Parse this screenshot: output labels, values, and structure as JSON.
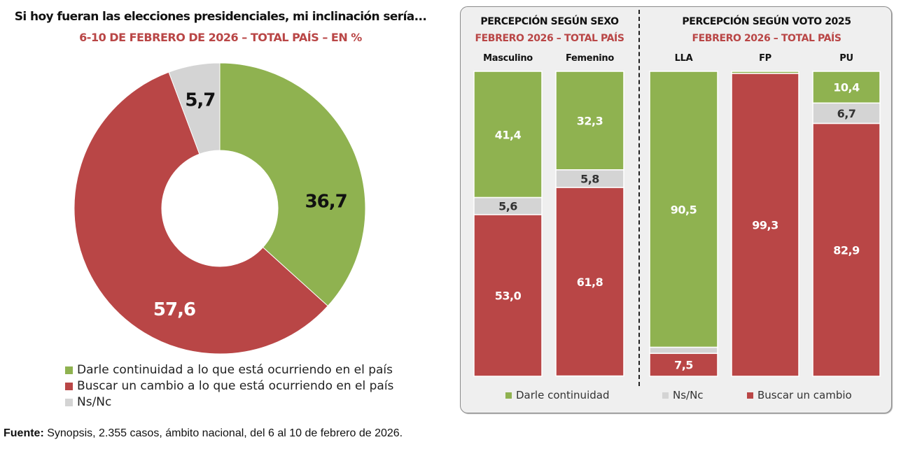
{
  "colors": {
    "green": "#8fb250",
    "red": "#b94646",
    "gray": "#d4d4d4",
    "subtitle_red": "#b94646"
  },
  "chart_data": [
    {
      "type": "pie",
      "variant": "donut",
      "title": "Si hoy fueran las elecciones presidenciales, mi inclinación sería...",
      "subtitle": "6-10 DE FEBRERO DE 2026 – TOTAL PAÍS – EN %",
      "slices": [
        {
          "label": "Darle continuidad a lo que está ocurriendo en el país",
          "value": 36.7,
          "display": "36,7",
          "color": "#8fb250"
        },
        {
          "label": "Buscar un cambio a lo que está ocurriendo en el país",
          "value": 57.6,
          "display": "57,6",
          "color": "#b94646"
        },
        {
          "label": "Ns/Nc",
          "value": 5.7,
          "display": "5,7",
          "color": "#d4d4d4"
        }
      ],
      "legend_position": "bottom-left"
    },
    {
      "type": "bar",
      "stacked": true,
      "title": "PERCEPCIÓN SEGÚN SEXO",
      "subtitle": "FEBRERO 2026 – TOTAL PAÍS",
      "categories": [
        "Masculino",
        "Femenino"
      ],
      "series": [
        {
          "name": "Darle continuidad",
          "values": [
            41.4,
            32.3
          ],
          "display": [
            "41,4",
            "32,3"
          ]
        },
        {
          "name": "Ns/Nc",
          "values": [
            5.6,
            5.8
          ],
          "display": [
            "5,6",
            "5,8"
          ]
        },
        {
          "name": "Buscar un cambio",
          "values": [
            53.0,
            61.8
          ],
          "display": [
            "53,0",
            "61,8"
          ]
        }
      ],
      "ylim": [
        0,
        100
      ]
    },
    {
      "type": "bar",
      "stacked": true,
      "title": "PERCEPCIÓN SEGÚN VOTO 2025",
      "subtitle": "FEBRERO 2026 – TOTAL PAÍS",
      "categories": [
        "LLA",
        "FP",
        "PU"
      ],
      "series": [
        {
          "name": "Darle continuidad",
          "values": [
            90.5,
            0.7,
            10.4
          ],
          "display": [
            "90,5",
            "",
            "10,4"
          ]
        },
        {
          "name": "Ns/Nc",
          "values": [
            2.0,
            0.0,
            6.7
          ],
          "display": [
            "",
            "",
            "6,7"
          ]
        },
        {
          "name": "Buscar un cambio",
          "values": [
            7.5,
            99.3,
            82.9
          ],
          "display": [
            "7,5",
            "99,3",
            "82,9"
          ]
        }
      ],
      "ylim": [
        0,
        100
      ]
    }
  ],
  "left": {
    "title": "Si hoy fueran las elecciones presidenciales, mi inclinación sería...",
    "subtitle": "6-10 DE FEBRERO DE 2026 – TOTAL PAÍS – EN %",
    "legend": [
      {
        "label": "Darle continuidad a lo que está ocurriendo en el país",
        "color": "#8fb250"
      },
      {
        "label": "Buscar un cambio a lo que está ocurriendo en el país",
        "color": "#b94646"
      },
      {
        "label": "Ns/Nc",
        "color": "#d4d4d4"
      }
    ]
  },
  "panel": {
    "sexo": {
      "title": "PERCEPCIÓN SEGÚN SEXO",
      "subtitle": "FEBRERO 2026 – TOTAL PAÍS",
      "categories": [
        "Masculino",
        "Femenino"
      ]
    },
    "voto": {
      "title": "PERCEPCIÓN SEGÚN VOTO 2025",
      "subtitle": "FEBRERO 2026 – TOTAL PAÍS",
      "categories": [
        "LLA",
        "FP",
        "PU"
      ]
    },
    "legend": [
      {
        "label": "Darle continuidad",
        "color": "#8fb250"
      },
      {
        "label": "Ns/Nc",
        "color": "#d4d4d4"
      },
      {
        "label": "Buscar un cambio",
        "color": "#b94646"
      }
    ]
  },
  "source": {
    "label": "Fuente:",
    "text": " Synopsis, 2.355 casos, ámbito nacional, del 6 al 10 de febrero de 2026."
  }
}
